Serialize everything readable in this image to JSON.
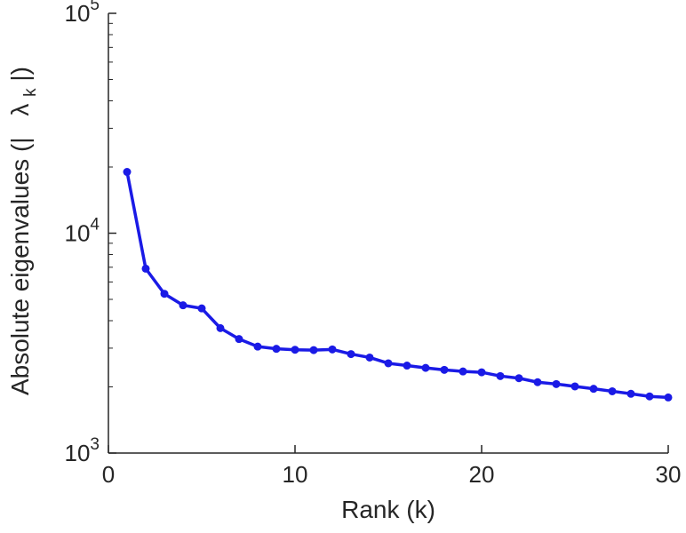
{
  "figure": {
    "background": "#ffffff"
  },
  "chart_data": {
    "type": "line",
    "title": "",
    "xlabel": "Rank (k)",
    "ylabel_prefix": "Absolute eigenvalues (|",
    "ylabel_symbol": "λ",
    "ylabel_subscript": "k",
    "ylabel_suffix": "|)",
    "x": [
      1,
      2,
      3,
      4,
      5,
      6,
      7,
      8,
      9,
      10,
      11,
      12,
      13,
      14,
      15,
      16,
      17,
      18,
      19,
      20,
      21,
      22,
      23,
      24,
      25,
      26,
      27,
      28,
      29,
      30
    ],
    "y": [
      19000,
      6900,
      5300,
      4700,
      4550,
      3700,
      3300,
      3050,
      2980,
      2950,
      2940,
      2960,
      2820,
      2720,
      2560,
      2500,
      2440,
      2390,
      2350,
      2330,
      2240,
      2190,
      2100,
      2060,
      2010,
      1960,
      1910,
      1860,
      1810,
      1790
    ],
    "xlim": [
      0,
      30
    ],
    "y_scale": "log",
    "ylim_exponents": [
      3,
      5
    ],
    "xticks": [
      0,
      10,
      20,
      30
    ],
    "ytick_base": "10",
    "ytick_exponents": [
      3,
      4,
      5
    ],
    "grid": false,
    "legend": null,
    "line_color": "#1a1ae6",
    "marker": "circle",
    "marker_color": "#1a1ae6",
    "axis_color": "#262626",
    "text_color": "#262626"
  }
}
